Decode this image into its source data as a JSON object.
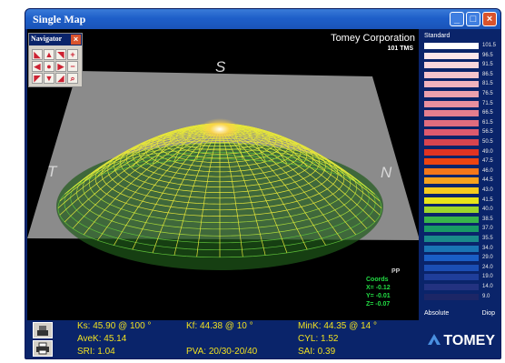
{
  "window": {
    "title": "Single Map"
  },
  "navigator": {
    "title": "Navigator"
  },
  "viewport": {
    "company": "Tomey Corporation",
    "model": "101 TMS",
    "dir_superior": "S",
    "dir_temporal": "T",
    "dir_nasal": "N",
    "readout": {
      "pp": "PP",
      "units": "Coords",
      "x": "X= -0.12",
      "y": "Y= -0.01",
      "z": "Z= -0.07"
    }
  },
  "scale": {
    "label": "Standard",
    "mode": "Absolute",
    "display": "Diop",
    "steps": [
      {
        "v": "101.5",
        "c": "#ffffff"
      },
      {
        "v": "96.5",
        "c": "#fbe6e9"
      },
      {
        "v": "91.5",
        "c": "#f8d6db"
      },
      {
        "v": "86.5",
        "c": "#f4c4cc"
      },
      {
        "v": "81.5",
        "c": "#f0b3bd"
      },
      {
        "v": "76.5",
        "c": "#eca1ad"
      },
      {
        "v": "71.5",
        "c": "#e8909e"
      },
      {
        "v": "66.5",
        "c": "#e47e8e"
      },
      {
        "v": "61.5",
        "c": "#e06c7e"
      },
      {
        "v": "56.5",
        "c": "#dc5a6e"
      },
      {
        "v": "50.5",
        "c": "#d7444f"
      },
      {
        "v": "49.0",
        "c": "#e03322"
      },
      {
        "v": "47.5",
        "c": "#ee4411"
      },
      {
        "v": "46.0",
        "c": "#f4771a"
      },
      {
        "v": "44.5",
        "c": "#f6a21d"
      },
      {
        "v": "43.0",
        "c": "#f6cb1e"
      },
      {
        "v": "41.5",
        "c": "#e9e419"
      },
      {
        "v": "40.0",
        "c": "#9ed62b"
      },
      {
        "v": "38.5",
        "c": "#39b54a"
      },
      {
        "v": "37.0",
        "c": "#189a66"
      },
      {
        "v": "35.5",
        "c": "#1a8a8a"
      },
      {
        "v": "34.0",
        "c": "#1a74b4"
      },
      {
        "v": "29.0",
        "c": "#1a5ec6"
      },
      {
        "v": "24.0",
        "c": "#1b4eb4"
      },
      {
        "v": "19.0",
        "c": "#1f3e9a"
      },
      {
        "v": "14.0",
        "c": "#233280"
      },
      {
        "v": "9.0",
        "c": "#1c2666"
      }
    ]
  },
  "stats": {
    "ks": "Ks: 45.90 @ 100 °",
    "kf": "Kf: 44.38 @  10 °",
    "mink": "MinK: 44.35 @  14 °",
    "avek": "AveK: 45.14",
    "cyl": "CYL:  1.52",
    "sri": "SRI: 1.04",
    "pva": "PVA: 20/30-20/40",
    "sai": "SAI: 0.39"
  },
  "brand": {
    "name": "TOMEY"
  },
  "colors": {
    "accent": "#0a246a",
    "stat_text": "#f0e020",
    "mesh": "#e8e83a"
  }
}
